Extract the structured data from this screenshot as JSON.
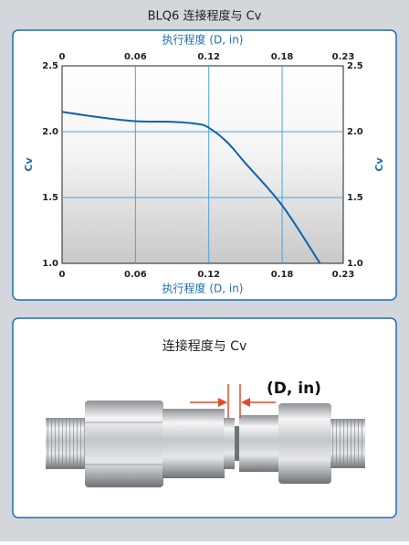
{
  "chart_data": {
    "type": "line",
    "title": "BLQ6 连接程度与 Cv",
    "xlabel": "执行程度 (D, in)",
    "ylabel": "Cv",
    "x": [
      0,
      0.03,
      0.06,
      0.09,
      0.11,
      0.12,
      0.135,
      0.15,
      0.18,
      0.211
    ],
    "values": [
      2.15,
      2.11,
      2.08,
      2.075,
      2.06,
      2.03,
      1.92,
      1.76,
      1.44,
      1.0
    ],
    "color": "#0e63ad",
    "xlim": [
      0,
      0.23
    ],
    "xticks": [
      0,
      0.06,
      0.12,
      0.18,
      0.23
    ],
    "ylim": [
      1,
      2.5
    ],
    "yticks": [
      {
        "value": 1,
        "label": "1.0"
      },
      1.5,
      {
        "value": 2,
        "label": "2.0"
      },
      2.5
    ],
    "grid": true,
    "grid_color": "#4aa3dc"
  },
  "diagram": {
    "title": "连接程度与 Cv",
    "dimension_label": "(D, in)"
  }
}
